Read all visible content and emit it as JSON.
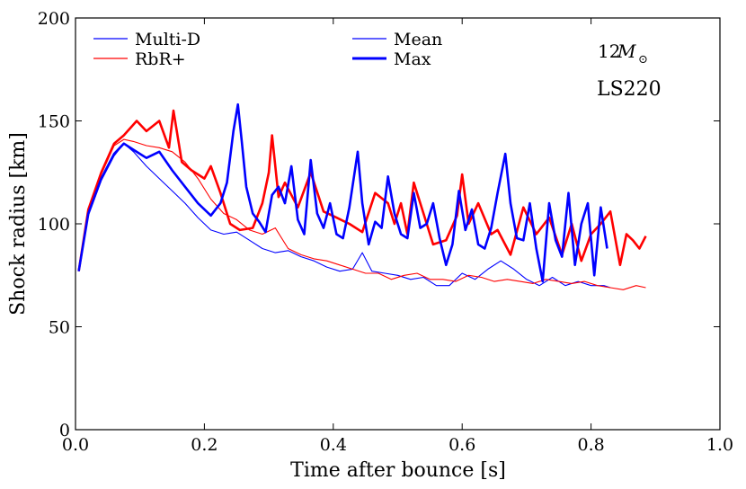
{
  "chart_data": {
    "type": "line",
    "title": "",
    "xlabel": "Time after bounce [s]",
    "ylabel": "Shock radius [km]",
    "xlim": [
      0.0,
      1.0
    ],
    "ylim": [
      0,
      200
    ],
    "xticks": [
      0.0,
      0.2,
      0.4,
      0.6,
      0.8,
      1.0
    ],
    "xtick_labels": [
      "0.0",
      "0.2",
      "0.4",
      "0.6",
      "0.8",
      "1.0"
    ],
    "yticks": [
      0,
      50,
      100,
      150,
      200
    ],
    "ytick_labels": [
      "0",
      "50",
      "100",
      "150",
      "200"
    ],
    "grid": false,
    "annotations": {
      "mass_value": "12",
      "mass_symbol": "M",
      "mass_subscript": "⊙",
      "eos": "LS220"
    },
    "legend": {
      "placement": "top",
      "entries": [
        {
          "label": "Multi-D",
          "color": "#0000ff",
          "style": "thin"
        },
        {
          "label": "RbR+",
          "color": "#ff0000",
          "style": "thin"
        },
        {
          "label": "Mean",
          "color": "#0000ff",
          "style": "thin"
        },
        {
          "label": "Max",
          "color": "#0000ff",
          "style": "thick"
        }
      ]
    },
    "series": [
      {
        "name": "Multi-D Max",
        "color": "#0000ff",
        "style": "thick",
        "x": [
          0.005,
          0.02,
          0.04,
          0.06,
          0.075,
          0.09,
          0.11,
          0.13,
          0.15,
          0.17,
          0.19,
          0.21,
          0.225,
          0.235,
          0.245,
          0.252,
          0.258,
          0.265,
          0.275,
          0.285,
          0.295,
          0.305,
          0.315,
          0.325,
          0.335,
          0.345,
          0.355,
          0.365,
          0.375,
          0.385,
          0.395,
          0.405,
          0.415,
          0.425,
          0.438,
          0.445,
          0.455,
          0.465,
          0.475,
          0.485,
          0.495,
          0.505,
          0.515,
          0.525,
          0.535,
          0.545,
          0.555,
          0.565,
          0.575,
          0.585,
          0.595,
          0.605,
          0.615,
          0.625,
          0.635,
          0.645,
          0.655,
          0.667,
          0.675,
          0.685,
          0.695,
          0.705,
          0.715,
          0.725,
          0.735,
          0.745,
          0.755,
          0.765,
          0.775,
          0.785,
          0.795,
          0.805,
          0.815,
          0.825
        ],
        "y": [
          77,
          105,
          122,
          134,
          139,
          136,
          132,
          135,
          126,
          118,
          110,
          104,
          110,
          120,
          145,
          158,
          140,
          118,
          105,
          101,
          96,
          114,
          118,
          110,
          128,
          102,
          95,
          131,
          105,
          98,
          110,
          95,
          93,
          108,
          135,
          110,
          90,
          101,
          98,
          123,
          105,
          95,
          93,
          115,
          98,
          100,
          110,
          93,
          80,
          90,
          116,
          97,
          107,
          90,
          88,
          98,
          115,
          134,
          110,
          93,
          92,
          110,
          88,
          72,
          110,
          92,
          84,
          115,
          80,
          100,
          110,
          75,
          108,
          88
        ]
      },
      {
        "name": "RbR+ Max",
        "color": "#ff0000",
        "style": "thick",
        "x": [
          0.005,
          0.02,
          0.04,
          0.06,
          0.075,
          0.095,
          0.11,
          0.13,
          0.145,
          0.152,
          0.165,
          0.18,
          0.2,
          0.21,
          0.225,
          0.24,
          0.255,
          0.275,
          0.29,
          0.3,
          0.305,
          0.315,
          0.325,
          0.345,
          0.365,
          0.385,
          0.405,
          0.425,
          0.445,
          0.465,
          0.485,
          0.495,
          0.505,
          0.515,
          0.525,
          0.54,
          0.555,
          0.575,
          0.592,
          0.6,
          0.61,
          0.625,
          0.645,
          0.655,
          0.675,
          0.695,
          0.715,
          0.735,
          0.755,
          0.77,
          0.785,
          0.8,
          0.815,
          0.83,
          0.845,
          0.855,
          0.865,
          0.875,
          0.885
        ],
        "y": [
          77,
          107,
          125,
          139,
          143,
          150,
          145,
          150,
          137,
          155,
          130,
          126,
          122,
          128,
          115,
          100,
          97,
          98,
          110,
          125,
          143,
          113,
          120,
          108,
          125,
          106,
          103,
          100,
          96,
          115,
          110,
          100,
          110,
          95,
          120,
          105,
          90,
          92,
          104,
          124,
          100,
          110,
          95,
          97,
          85,
          108,
          95,
          103,
          85,
          100,
          82,
          95,
          100,
          106,
          80,
          95,
          92,
          88,
          94
        ]
      },
      {
        "name": "Multi-D Mean",
        "color": "#0000ff",
        "style": "thin",
        "x": [
          0.005,
          0.02,
          0.04,
          0.06,
          0.075,
          0.09,
          0.11,
          0.13,
          0.15,
          0.17,
          0.19,
          0.21,
          0.23,
          0.25,
          0.27,
          0.29,
          0.31,
          0.33,
          0.35,
          0.37,
          0.39,
          0.41,
          0.43,
          0.445,
          0.46,
          0.48,
          0.5,
          0.52,
          0.54,
          0.56,
          0.58,
          0.6,
          0.62,
          0.64,
          0.66,
          0.68,
          0.7,
          0.72,
          0.74,
          0.76,
          0.78,
          0.8,
          0.82,
          0.83
        ],
        "y": [
          77,
          104,
          121,
          133,
          139,
          135,
          128,
          122,
          116,
          110,
          103,
          97,
          95,
          96,
          92,
          88,
          86,
          87,
          84,
          82,
          79,
          77,
          78,
          86,
          77,
          76,
          75,
          73,
          74,
          70,
          70,
          76,
          73,
          78,
          82,
          78,
          73,
          70,
          74,
          70,
          72,
          70,
          70,
          69
        ]
      },
      {
        "name": "RbR+ Mean",
        "color": "#ff0000",
        "style": "thin",
        "x": [
          0.005,
          0.02,
          0.04,
          0.06,
          0.075,
          0.09,
          0.11,
          0.13,
          0.15,
          0.17,
          0.19,
          0.21,
          0.23,
          0.25,
          0.27,
          0.29,
          0.31,
          0.33,
          0.35,
          0.37,
          0.39,
          0.41,
          0.43,
          0.45,
          0.47,
          0.49,
          0.51,
          0.53,
          0.55,
          0.57,
          0.59,
          0.61,
          0.63,
          0.65,
          0.67,
          0.69,
          0.71,
          0.73,
          0.75,
          0.77,
          0.79,
          0.81,
          0.83,
          0.85,
          0.87,
          0.885
        ],
        "y": [
          77,
          106,
          124,
          138,
          141,
          140,
          138,
          137,
          135,
          130,
          122,
          112,
          105,
          102,
          97,
          95,
          98,
          88,
          85,
          83,
          82,
          80,
          78,
          76,
          76,
          73,
          75,
          76,
          73,
          73,
          72,
          75,
          74,
          72,
          73,
          72,
          71,
          73,
          72,
          71,
          72,
          70,
          69,
          68,
          70,
          69
        ]
      }
    ]
  }
}
